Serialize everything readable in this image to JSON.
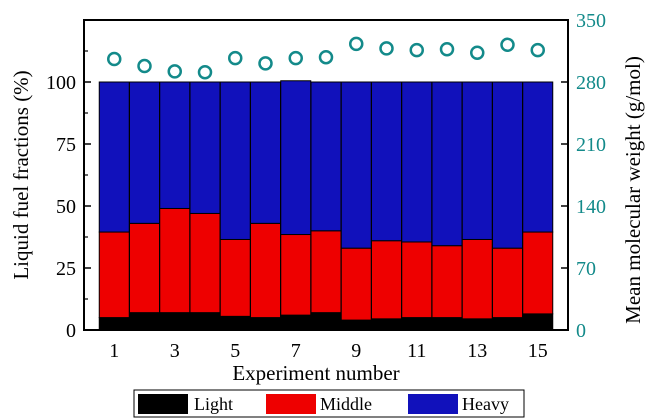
{
  "chart_data": {
    "type": "bar",
    "stacked": true,
    "xlabel": "Experiment number",
    "ylabel": "Liquid fuel fractions (%)",
    "y2label": "Mean molecular weight (g/mol)",
    "categories": [
      1,
      2,
      3,
      4,
      5,
      6,
      7,
      8,
      9,
      10,
      11,
      12,
      13,
      14,
      15
    ],
    "x_tick_labels": [
      "1",
      "3",
      "5",
      "7",
      "9",
      "11",
      "13",
      "15"
    ],
    "x_tick_values": [
      1,
      3,
      5,
      7,
      9,
      11,
      13,
      15
    ],
    "xlim": [
      0,
      16
    ],
    "ylim": [
      0,
      125
    ],
    "y_ticks": [
      "0",
      "25",
      "50",
      "75",
      "100"
    ],
    "y2lim": [
      0,
      350
    ],
    "y2_ticks": [
      "0",
      "70",
      "140",
      "210",
      "280",
      "350"
    ],
    "series": [
      {
        "name": "Light",
        "color": "#000000",
        "values": [
          5,
          7,
          7,
          7,
          5.5,
          5,
          6,
          7,
          4,
          4.5,
          5,
          5,
          4.5,
          5,
          6.5
        ]
      },
      {
        "name": "Middle",
        "color": "#ee0000",
        "values": [
          34.5,
          36,
          42,
          40,
          31,
          38,
          32.5,
          33,
          29,
          31.5,
          30.5,
          29,
          32,
          28,
          33
        ]
      },
      {
        "name": "Heavy",
        "color": "#1111bb",
        "values": [
          60.5,
          57,
          51,
          53,
          63.5,
          57,
          62,
          60,
          67,
          64,
          64.5,
          66,
          63.5,
          67,
          60.5
        ]
      }
    ],
    "secondary_series": {
      "name": "Mean molecular weight",
      "type": "scatter",
      "marker": "open-circle",
      "color": "#138a8a",
      "values": [
        306,
        298,
        292,
        291,
        307,
        301,
        307,
        308,
        323,
        318,
        316,
        317,
        313,
        322,
        316
      ]
    },
    "legend": {
      "placement": "bottom",
      "entries": [
        "Light",
        "Middle",
        "Heavy"
      ]
    }
  }
}
